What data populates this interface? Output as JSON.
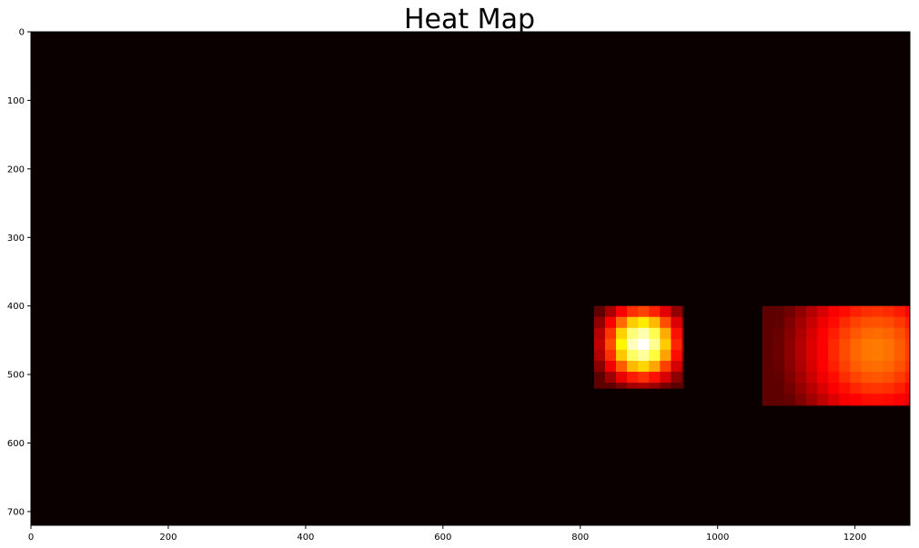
{
  "chart_data": {
    "type": "heatmap",
    "title": "Heat Map",
    "xlabel": "",
    "ylabel": "",
    "colormap": "hot",
    "background_color": "#0b0000",
    "xlim": [
      0,
      1280
    ],
    "ylim": [
      720,
      0
    ],
    "x_ticks": [
      0,
      200,
      400,
      600,
      800,
      1000,
      1200
    ],
    "y_ticks": [
      0,
      100,
      200,
      300,
      400,
      500,
      600,
      700
    ],
    "grid": false,
    "value_range": [
      0,
      1
    ],
    "hot_regions": [
      {
        "x": [
          820,
          950
        ],
        "y": [
          400,
          520
        ],
        "peak": [
          890,
          455
        ],
        "peak_value": 1.0,
        "sigma": 38
      },
      {
        "x": [
          1065,
          1280
        ],
        "y": [
          400,
          545
        ],
        "peak": [
          1230,
          465
        ],
        "peak_value": 0.55,
        "sigma": 85
      }
    ]
  }
}
